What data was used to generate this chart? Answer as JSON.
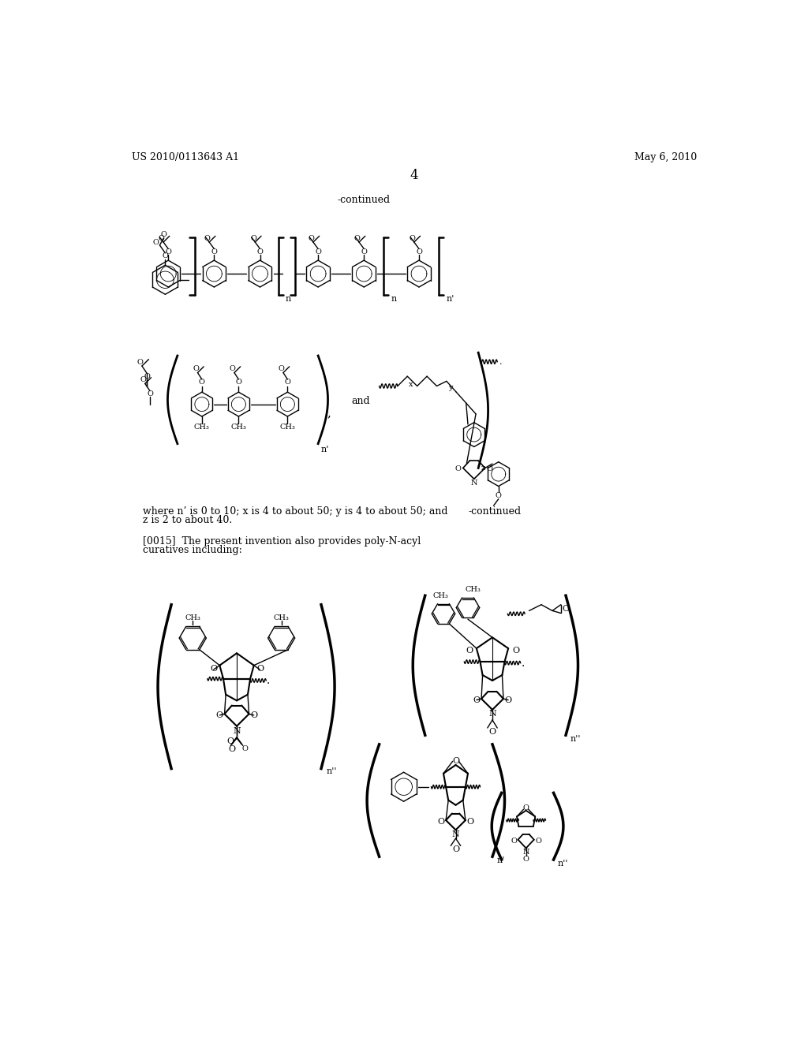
{
  "page_header_left": "US 2010/0113643 A1",
  "page_header_right": "May 6, 2010",
  "page_number": "4",
  "continued_top": "-continued",
  "continued_mid": "-continued",
  "text1": "where n’ is 0 to 10; x is 4 to about 50; y is 4 to about 50; and",
  "text2": "z is 2 to about 40.",
  "text3": "[0015]  The present invention also provides poly-N-acyl",
  "text4": "curatives including:",
  "background_color": "#ffffff"
}
